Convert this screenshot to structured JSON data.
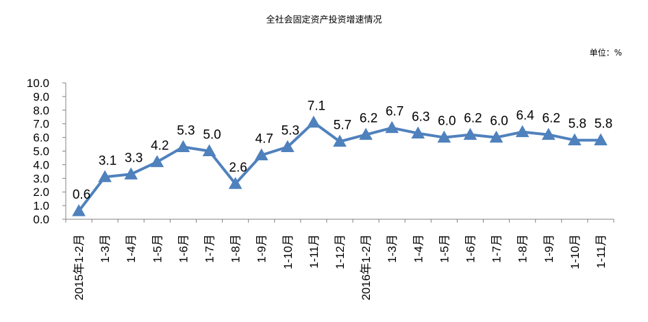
{
  "chart_data": {
    "type": "line",
    "title": "全社会固定资产投资增速情况",
    "unit_label": "单位：%",
    "categories": [
      "2015年1-2月",
      "1-3月",
      "1-4月",
      "1-5月",
      "1-6月",
      "1-7月",
      "1-8月",
      "1-9月",
      "1-10月",
      "1-11月",
      "1-12月",
      "2016年1-2月",
      "1-3月",
      "1-4月",
      "1-5月",
      "1-6月",
      "1-7月",
      "1-8月",
      "1-9月",
      "1-10月",
      "1-11月"
    ],
    "series": [
      {
        "values": [
          0.6,
          3.1,
          3.3,
          4.2,
          5.3,
          5.0,
          2.6,
          4.7,
          5.3,
          7.1,
          5.7,
          6.2,
          6.7,
          6.3,
          6.0,
          6.2,
          6.0,
          6.4,
          6.2,
          5.8,
          5.8
        ]
      }
    ],
    "data_labels": [
      "0.6",
      "3.1",
      "3.3",
      "4.2",
      "5.3",
      "5.0",
      "2.6",
      "4.7",
      "5.3",
      "7.1",
      "5.7",
      "6.2",
      "6.7",
      "6.3",
      "6.0",
      "6.2",
      "6.0",
      "6.4",
      "6.2",
      "5.8",
      "5.8"
    ],
    "ylim": [
      0,
      10
    ],
    "y_ticks": [
      "0.0",
      "1.0",
      "2.0",
      "3.0",
      "4.0",
      "5.0",
      "6.0",
      "7.0",
      "8.0",
      "9.0",
      "10.0"
    ],
    "marker": "triangle",
    "line_color": "#4f81bd",
    "grid": false,
    "legend": "none"
  }
}
